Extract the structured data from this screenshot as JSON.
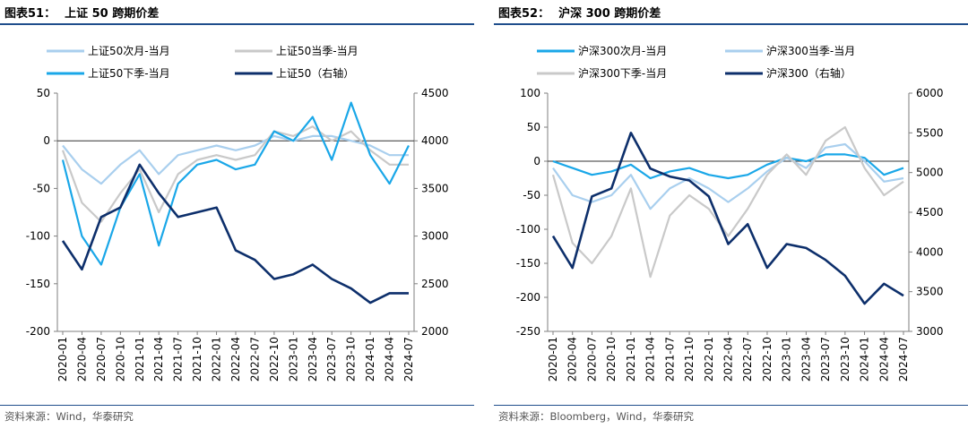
{
  "colors": {
    "near_month": "#a9cfee",
    "current_season": "#c9c9c9",
    "next_season": "#1aa7e8",
    "index": "#0d2f6b",
    "rule": "#1f4e8c"
  },
  "left_panel": {
    "figure_label": "图表51：",
    "figure_title": "上证 50 跨期价差",
    "source": "资料来源：Wind，华泰研究"
  },
  "right_panel": {
    "figure_label": "图表52：",
    "figure_title": "沪深 300 跨期价差",
    "source": "资料来源：Bloomberg，Wind，华泰研究"
  },
  "chart_data": [
    {
      "type": "line",
      "title": "上证 50 跨期价差",
      "xlabel": "",
      "ylabel": "",
      "categories": [
        "2020-01",
        "2020-04",
        "2020-07",
        "2020-10",
        "2021-01",
        "2021-04",
        "2021-07",
        "2021-10",
        "2022-01",
        "2022-04",
        "2022-07",
        "2022-10",
        "2023-01",
        "2023-04",
        "2023-07",
        "2023-10",
        "2024-01",
        "2024-04",
        "2024-07"
      ],
      "ylim": [
        -200,
        50
      ],
      "yticks": [
        50,
        0,
        -50,
        -100,
        -150,
        -200
      ],
      "y2lim": [
        2000,
        4500
      ],
      "y2ticks": [
        4500,
        4000,
        3500,
        3000,
        2500,
        2000
      ],
      "legend": [
        "上证50次月-当月",
        "上证50当季-当月",
        "上证50下季-当月",
        "上证50（右轴）"
      ],
      "series": [
        {
          "name": "上证50次月-当月",
          "axis": "left",
          "style": "near_month",
          "values": [
            -5,
            -30,
            -45,
            -25,
            -10,
            -35,
            -15,
            -10,
            -5,
            -10,
            -5,
            5,
            0,
            5,
            5,
            0,
            -5,
            -15,
            -15
          ]
        },
        {
          "name": "上证50当季-当月",
          "axis": "left",
          "style": "current_season",
          "values": [
            -10,
            -65,
            -85,
            -55,
            -30,
            -75,
            -35,
            -20,
            -15,
            -20,
            -15,
            10,
            5,
            15,
            0,
            10,
            -10,
            -25,
            -25
          ]
        },
        {
          "name": "上证50下季-当月",
          "axis": "left",
          "style": "next_season",
          "values": [
            -20,
            -100,
            -130,
            -70,
            -35,
            -110,
            -45,
            -25,
            -20,
            -30,
            -25,
            10,
            0,
            25,
            -20,
            40,
            -15,
            -45,
            -5
          ]
        },
        {
          "name": "上证50（右轴）",
          "axis": "right",
          "style": "index",
          "values": [
            2950,
            2650,
            3200,
            3300,
            3750,
            3450,
            3200,
            3250,
            3300,
            2850,
            2750,
            2550,
            2600,
            2700,
            2550,
            2450,
            2300,
            2400,
            2400
          ]
        }
      ]
    },
    {
      "type": "line",
      "title": "沪深 300 跨期价差",
      "xlabel": "",
      "ylabel": "",
      "categories": [
        "2020-01",
        "2020-04",
        "2020-07",
        "2020-10",
        "2021-01",
        "2021-04",
        "2021-07",
        "2021-10",
        "2022-01",
        "2022-04",
        "2022-07",
        "2022-10",
        "2023-01",
        "2023-04",
        "2023-07",
        "2023-10",
        "2024-01",
        "2024-04",
        "2024-07"
      ],
      "ylim": [
        -250,
        100
      ],
      "yticks": [
        100,
        50,
        0,
        -50,
        -100,
        -150,
        -200,
        -250
      ],
      "y2lim": [
        3000,
        6000
      ],
      "y2ticks": [
        6000,
        5500,
        5000,
        4500,
        4000,
        3500,
        3000
      ],
      "legend": [
        "沪深300次月-当月",
        "沪深300当季-当月",
        "沪深300下季-当月",
        "沪深300（右轴）"
      ],
      "series": [
        {
          "name": "沪深300次月-当月",
          "axis": "left",
          "style": "next_season",
          "values": [
            0,
            -10,
            -20,
            -15,
            -5,
            -25,
            -15,
            -10,
            -20,
            -25,
            -20,
            -5,
            5,
            0,
            10,
            10,
            5,
            -20,
            -10
          ]
        },
        {
          "name": "沪深300当季-当月",
          "axis": "left",
          "style": "near_month",
          "values": [
            -10,
            -50,
            -60,
            -50,
            -20,
            -70,
            -40,
            -25,
            -40,
            -60,
            -40,
            -15,
            5,
            -10,
            20,
            25,
            0,
            -30,
            -25
          ]
        },
        {
          "name": "沪深300下季-当月",
          "axis": "left",
          "style": "current_season",
          "values": [
            -20,
            -120,
            -150,
            -110,
            -40,
            -170,
            -80,
            -50,
            -70,
            -110,
            -70,
            -20,
            10,
            -20,
            30,
            50,
            -10,
            -50,
            -30
          ]
        },
        {
          "name": "沪深300（右轴）",
          "axis": "right",
          "style": "index",
          "values": [
            4200,
            3800,
            4700,
            4800,
            5500,
            5050,
            4950,
            4900,
            4700,
            4100,
            4350,
            3800,
            4100,
            4050,
            3900,
            3700,
            3350,
            3600,
            3450
          ]
        }
      ]
    }
  ]
}
